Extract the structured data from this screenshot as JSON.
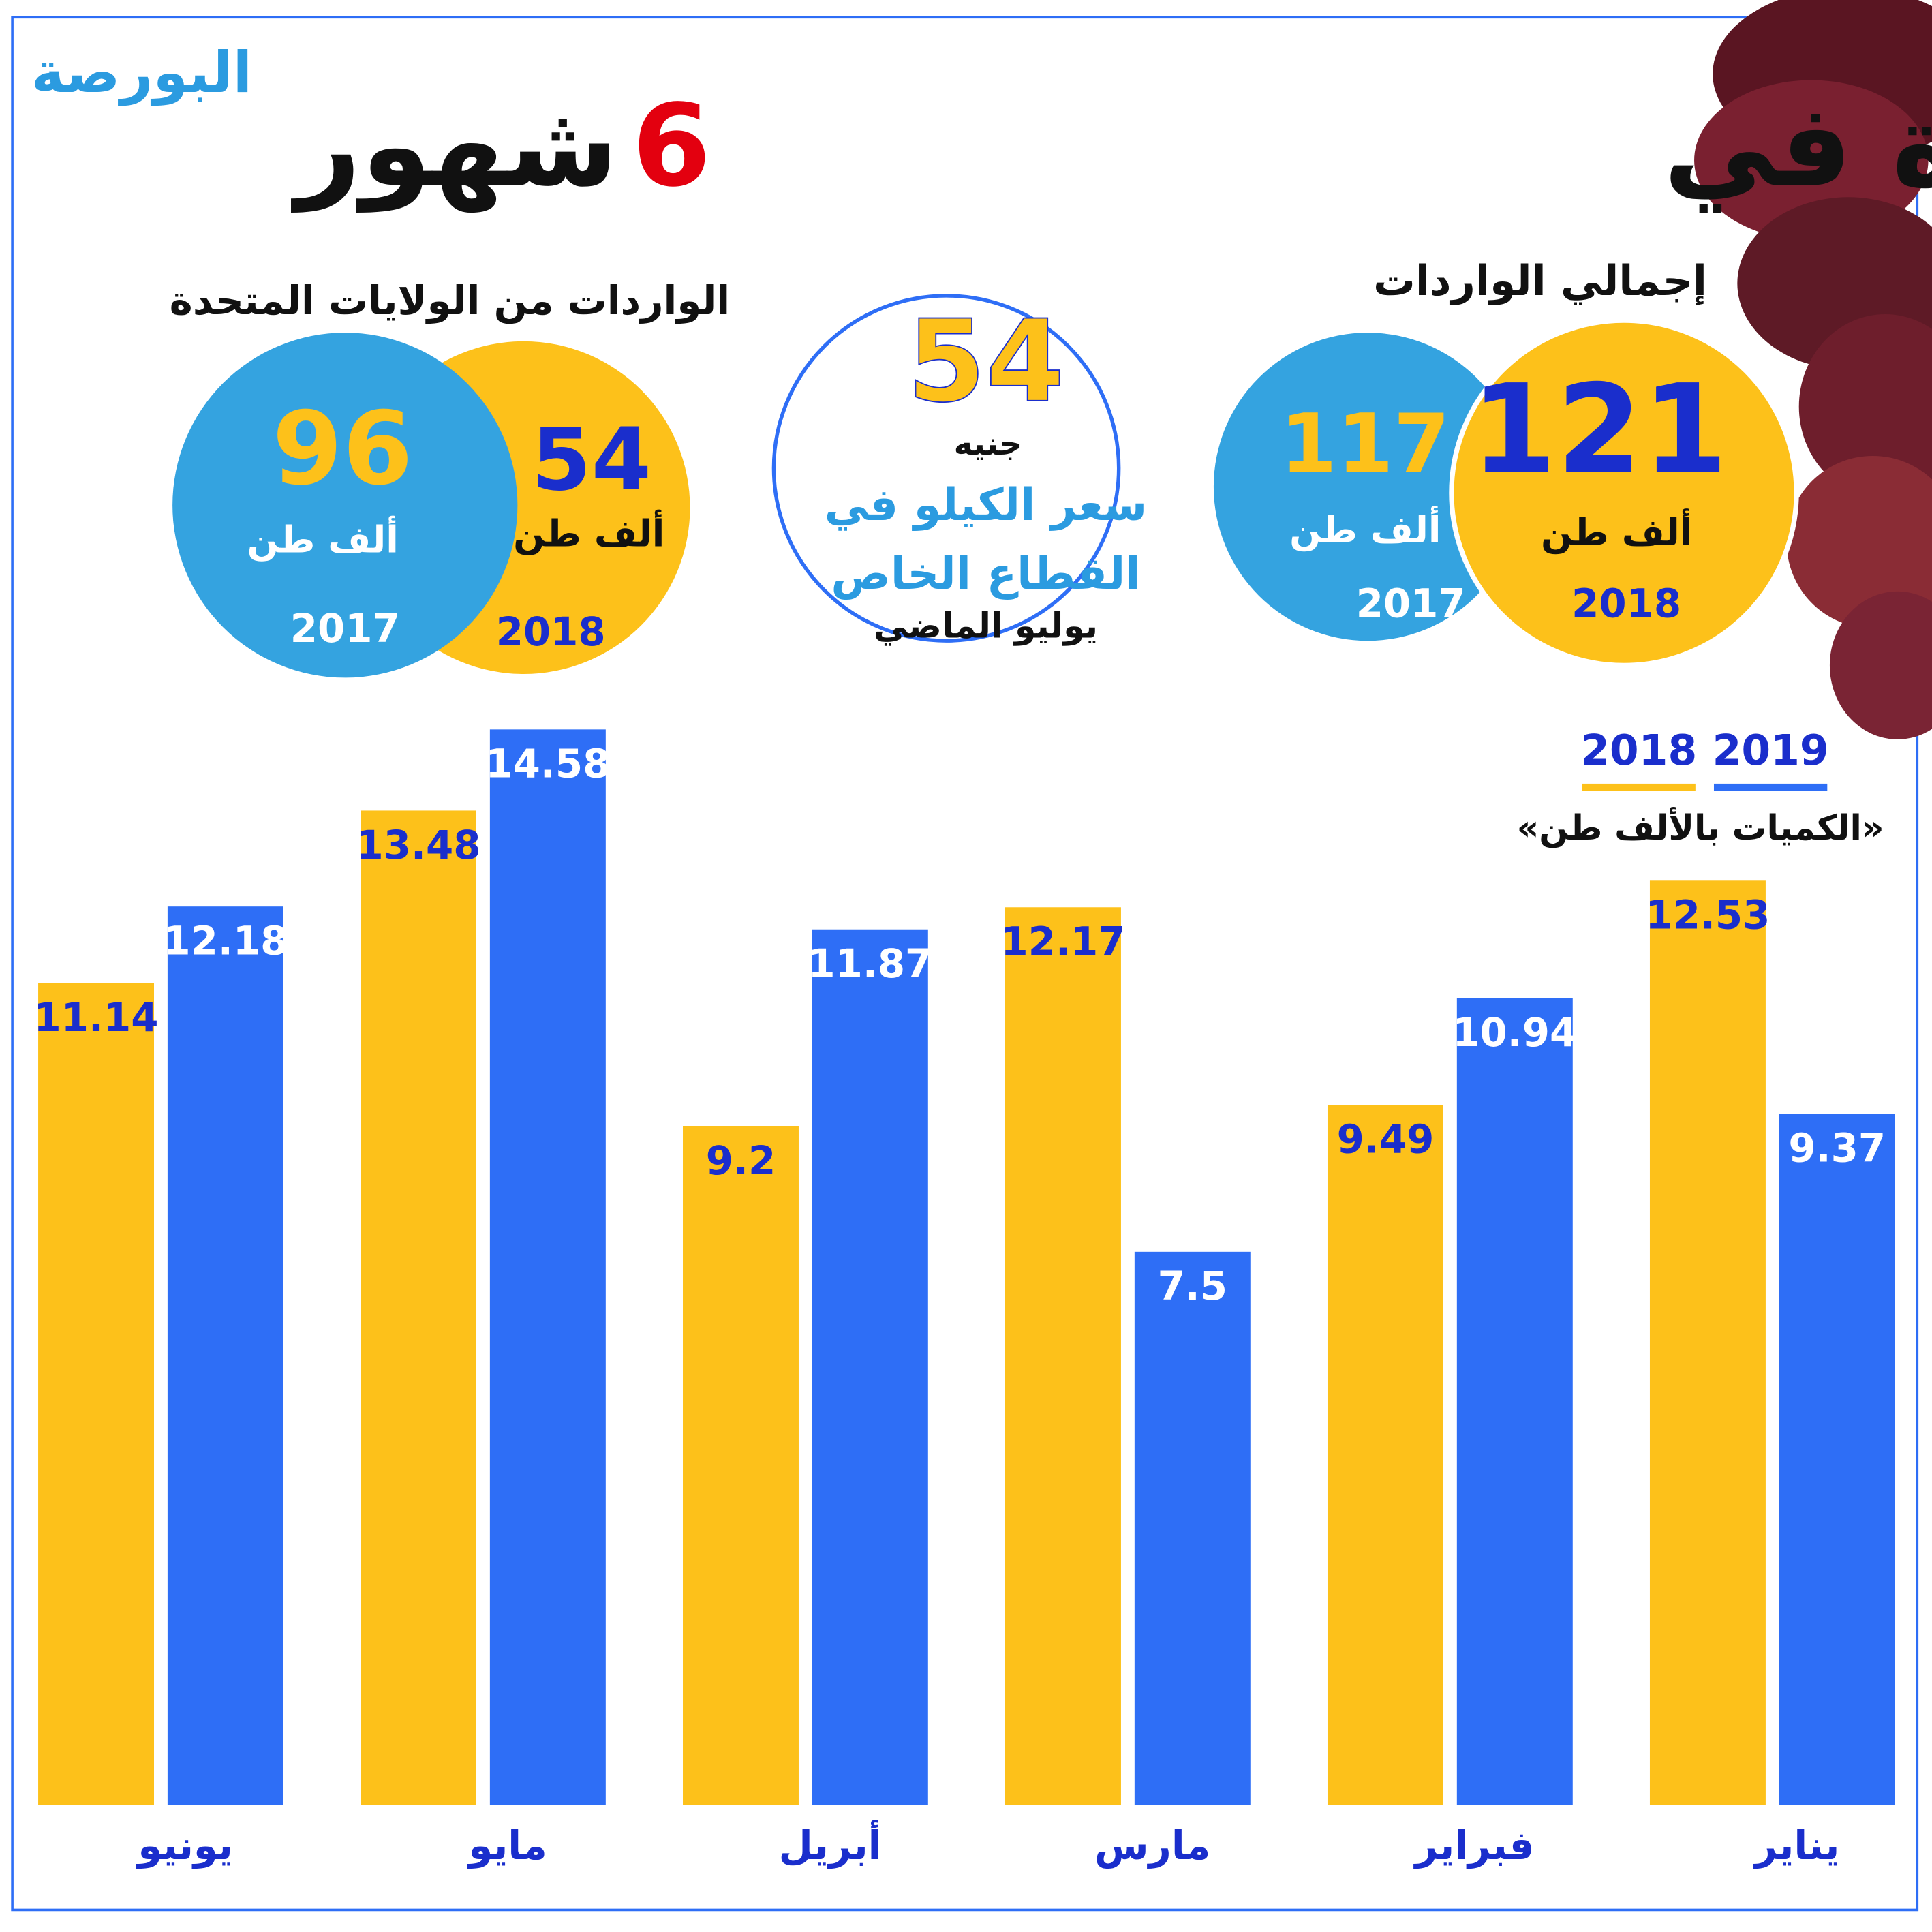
{
  "header": {
    "logo": "البورصة",
    "title_start": "واردات الكبدة في",
    "title_number": "6",
    "title_end": "شهور"
  },
  "us_imports": {
    "title": "الواردات من الولايات المتحدة",
    "items": [
      {
        "value": 96,
        "unit": "ألف طن",
        "year": "2017"
      },
      {
        "value": 54,
        "unit": "ألف طن",
        "year": "2018"
      }
    ]
  },
  "price": {
    "value": 54,
    "unit": "جنيه",
    "line1": "سعر الكيلو في",
    "line2": "القطاع الخاص",
    "line3": "يوليو الماضي"
  },
  "total_imports": {
    "title": "إجمالي الواردات",
    "items": [
      {
        "value": 117,
        "unit": "ألف طن",
        "year": "2017"
      },
      {
        "value": 121,
        "unit": "ألف طن",
        "year": "2018"
      }
    ]
  },
  "chart_data": {
    "type": "bar",
    "note": "«الكميات بالألف طن»",
    "categories": [
      "يناير",
      "فبراير",
      "مارس",
      "أبريل",
      "مايو",
      "يونيو"
    ],
    "series": [
      {
        "name": "2018",
        "color": "#fdc11a",
        "values": [
          12.53,
          9.49,
          12.17,
          9.2,
          13.48,
          11.14
        ]
      },
      {
        "name": "2019",
        "color": "#2e6ef6",
        "values": [
          9.37,
          10.94,
          7.5,
          11.87,
          14.58,
          12.18
        ]
      }
    ]
  }
}
